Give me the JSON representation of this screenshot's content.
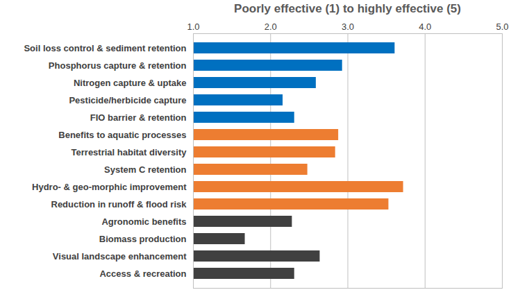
{
  "chart_data": {
    "type": "bar",
    "orientation": "horizontal",
    "title": "Poorly effective (1) to highly effective (5)",
    "categories": [
      "Soil loss control & sediment retention",
      "Phosphorus capture & retention",
      "Nitrogen capture & uptake",
      "Pesticide/herbicide capture",
      "FIO barrier & retention",
      "Benefits to aquatic processes",
      "Terrestrial habitat diversity",
      "System C retention",
      "Hydro- & geo-morphic improvement",
      "Reduction in runoff & flood risk",
      "Agronomic benefits",
      "Biomass production",
      "Visual landscape enhancement",
      "Access & recreation"
    ],
    "values": [
      3.61,
      2.93,
      2.59,
      2.16,
      2.31,
      2.88,
      2.84,
      2.48,
      3.72,
      3.53,
      2.28,
      1.67,
      2.64,
      2.31
    ],
    "colors": [
      "#0070c0",
      "#0070c0",
      "#0070c0",
      "#0070c0",
      "#0070c0",
      "#ed7d31",
      "#ed7d31",
      "#ed7d31",
      "#ed7d31",
      "#ed7d31",
      "#404040",
      "#404040",
      "#404040",
      "#404040"
    ],
    "xlim": [
      1,
      5
    ],
    "xticks": [
      1,
      2,
      3,
      4,
      5
    ],
    "grid": true
  }
}
